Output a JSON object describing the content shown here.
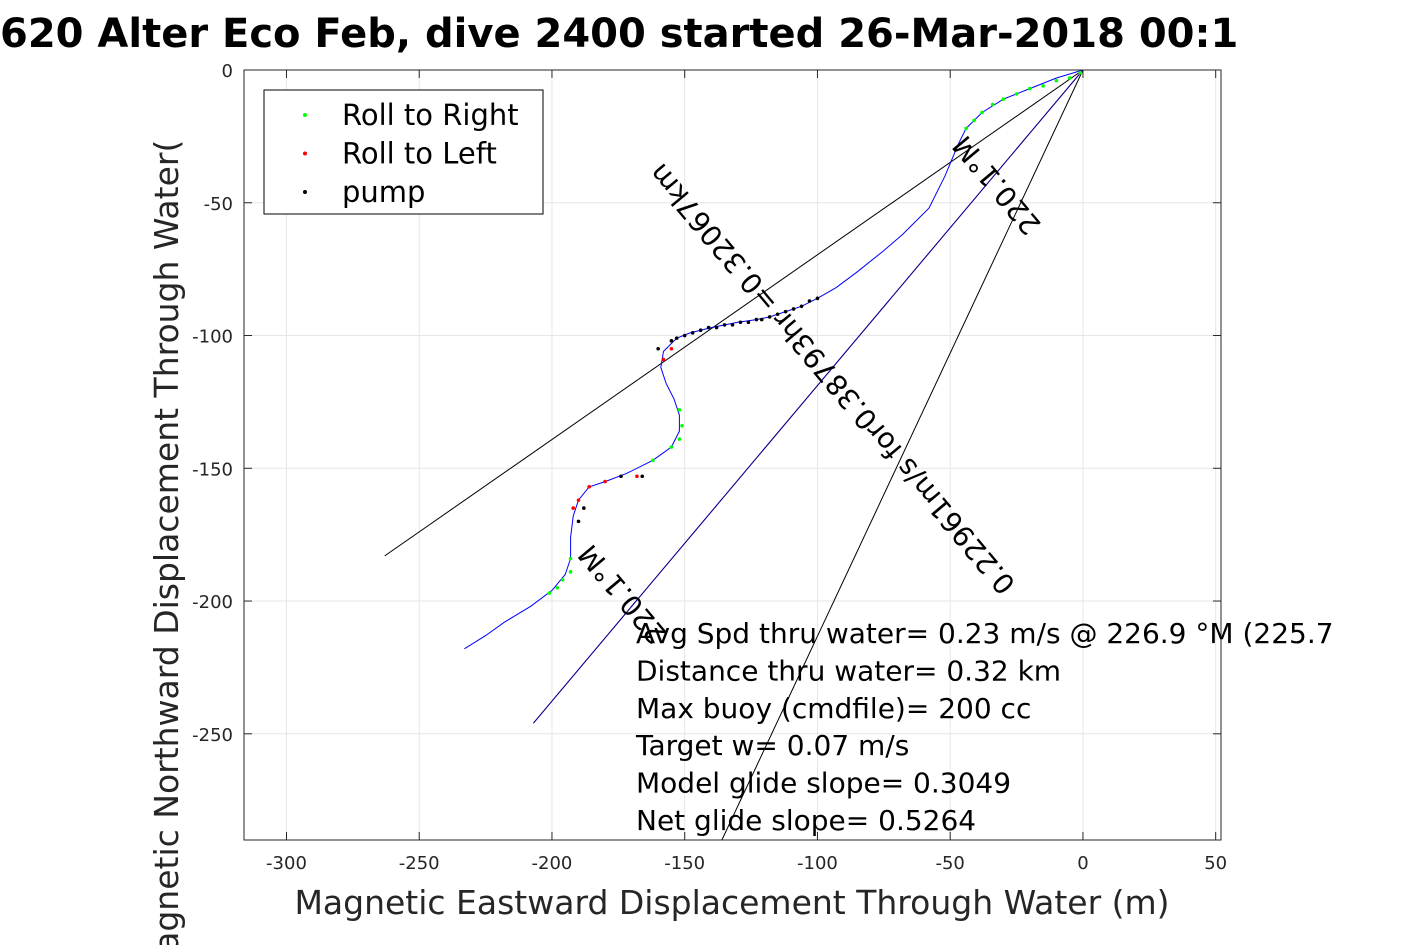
{
  "chart_data": {
    "type": "scatter",
    "title": "620 Alter Eco Feb, dive 2400 started 26-Mar-2018 00:1",
    "xlabel": "Magnetic Eastward Displacement Through Water (m)",
    "ylabel": "Magnetic Northward Displacement Through Water(",
    "xlim": [
      -316,
      52
    ],
    "ylim": [
      -290,
      0
    ],
    "x_ticks": [
      -300,
      -250,
      -200,
      -150,
      -100,
      -50,
      0,
      50
    ],
    "y_ticks": [
      0,
      -50,
      -100,
      -150,
      -200,
      -250
    ],
    "x_tick_labels": [
      "-300",
      "-250",
      "-200",
      "-150",
      "-100",
      "-50",
      "0",
      "50"
    ],
    "y_tick_labels": [
      "0",
      "-50",
      "-100",
      "-150",
      "-200",
      "-250"
    ],
    "grid": true,
    "legend_position": "top-left",
    "legend": [
      {
        "label": "Roll to Right",
        "color": "#00ff00"
      },
      {
        "label": "Roll to Left",
        "color": "#ff0000"
      },
      {
        "label": "pump",
        "color": "#000000"
      }
    ],
    "track": {
      "color": "#0000ff",
      "points": [
        [
          0,
          0
        ],
        [
          -10,
          -3
        ],
        [
          -20,
          -7
        ],
        [
          -30,
          -11
        ],
        [
          -38,
          -16
        ],
        [
          -44,
          -22
        ],
        [
          -47,
          -28
        ],
        [
          -52,
          -40
        ],
        [
          -58,
          -52
        ],
        [
          -68,
          -62
        ],
        [
          -75,
          -68
        ],
        [
          -85,
          -76
        ],
        [
          -93,
          -82
        ],
        [
          -100,
          -86
        ],
        [
          -106,
          -89
        ],
        [
          -112,
          -91
        ],
        [
          -118,
          -93
        ],
        [
          -123,
          -94
        ],
        [
          -130,
          -95
        ],
        [
          -140,
          -97
        ],
        [
          -148,
          -99
        ],
        [
          -153,
          -101
        ],
        [
          -158,
          -106
        ],
        [
          -159,
          -112
        ],
        [
          -157,
          -118
        ],
        [
          -154,
          -124
        ],
        [
          -152,
          -130
        ],
        [
          -152,
          -136
        ],
        [
          -155,
          -142
        ],
        [
          -162,
          -147
        ],
        [
          -172,
          -152
        ],
        [
          -180,
          -155
        ],
        [
          -186,
          -157
        ],
        [
          -190,
          -162
        ],
        [
          -192,
          -168
        ],
        [
          -193,
          -176
        ],
        [
          -193,
          -184
        ],
        [
          -195,
          -190
        ],
        [
          -200,
          -196
        ],
        [
          -208,
          -202
        ],
        [
          -218,
          -208
        ],
        [
          -225,
          -213
        ],
        [
          -233,
          -218
        ]
      ]
    },
    "roll_right": [
      [
        -1,
        -1
      ],
      [
        -5,
        -3
      ],
      [
        -10,
        -4
      ],
      [
        -15,
        -6
      ],
      [
        -20,
        -7
      ],
      [
        -25,
        -9
      ],
      [
        -30,
        -11
      ],
      [
        -34,
        -13
      ],
      [
        -38,
        -16
      ],
      [
        -41,
        -19
      ],
      [
        -44,
        -22
      ],
      [
        -152,
        -128
      ],
      [
        -151,
        -134
      ],
      [
        -152,
        -139
      ],
      [
        -155,
        -142
      ],
      [
        -162,
        -147
      ],
      [
        -193,
        -184
      ],
      [
        -193,
        -189
      ],
      [
        -196,
        -192
      ],
      [
        -198,
        -195
      ],
      [
        -201,
        -197
      ]
    ],
    "roll_left": [
      [
        -155,
        -105
      ],
      [
        -158,
        -109
      ],
      [
        -168,
        -153
      ],
      [
        -180,
        -155
      ],
      [
        -186,
        -157
      ],
      [
        -190,
        -162
      ],
      [
        -192,
        -165
      ]
    ],
    "pump": [
      [
        -100,
        -86
      ],
      [
        -103,
        -87
      ],
      [
        -106,
        -89
      ],
      [
        -109,
        -90
      ],
      [
        -112,
        -91
      ],
      [
        -115,
        -92
      ],
      [
        -118,
        -93
      ],
      [
        -121,
        -94
      ],
      [
        -123,
        -94
      ],
      [
        -126,
        -95
      ],
      [
        -129,
        -95
      ],
      [
        -132,
        -96
      ],
      [
        -135,
        -96
      ],
      [
        -138,
        -97
      ],
      [
        -141,
        -97
      ],
      [
        -144,
        -98
      ],
      [
        -147,
        -99
      ],
      [
        -150,
        -100
      ],
      [
        -153,
        -101
      ],
      [
        -155,
        -102
      ],
      [
        -160,
        -105
      ],
      [
        -166,
        -153
      ],
      [
        -174,
        -153
      ],
      [
        -188,
        -165
      ],
      [
        -190,
        -170
      ]
    ],
    "lines": [
      {
        "name": "black-line-1",
        "color": "#000000",
        "from": [
          0,
          0
        ],
        "to": [
          -263,
          -183
        ]
      },
      {
        "name": "black-line-2",
        "color": "#000000",
        "from": [
          0,
          0
        ],
        "to": [
          -136,
          -290
        ]
      },
      {
        "name": "magenta-line",
        "color": "#ff00ff",
        "from": [
          0,
          0
        ],
        "to": [
          -207,
          -246
        ]
      },
      {
        "name": "dark-line",
        "color": "#000080",
        "from": [
          0,
          0
        ],
        "to": [
          -207,
          -246
        ]
      }
    ],
    "rotated_labels": [
      {
        "name": "heading-label-top",
        "text": "220.1°M",
        "at": [
          -32,
          -43
        ],
        "angle": 50
      },
      {
        "name": "speed-label",
        "text": "0.22961m/s for0.38793hr =0.32067km",
        "at": [
          -94,
          -116
        ],
        "angle": 50
      },
      {
        "name": "heading-label-bottom",
        "text": "220.1°M",
        "at": [
          -173,
          -197
        ],
        "angle": 50
      }
    ],
    "annotations": [
      "Avg Spd thru water=  0.23 m/s @ 226.9 °M (225.7",
      "Distance thru water=  0.32 km",
      "Max buoy (cmdfile)= 200 cc",
      "Target w= 0.07 m/s",
      "Model glide slope= 0.3049",
      "Net glide slope= 0.5264"
    ]
  }
}
